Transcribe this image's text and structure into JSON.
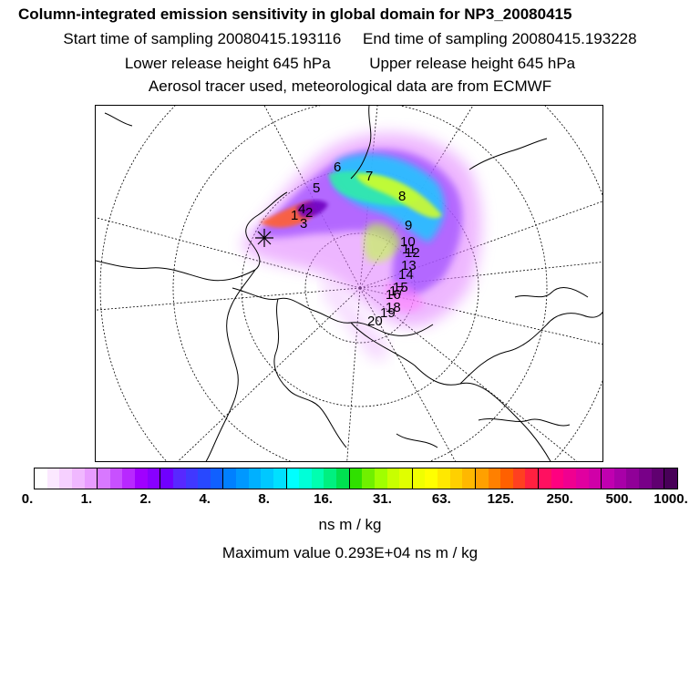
{
  "header": {
    "title": "Column-integrated emission sensitivity in global domain for NP3_20080415",
    "sampling_start": "Start time of sampling 20080415.193116",
    "sampling_end": "End time of sampling 20080415.193228",
    "lower_release": "Lower release height  645 hPa",
    "upper_release": "Upper release height  645 hPa",
    "tracer_info": "Aerosol tracer used, meteorological data are from ECMWF"
  },
  "map": {
    "projection": "polar stereographic (north pole)",
    "day_labels": [
      "1",
      "2",
      "3",
      "4",
      "5",
      "6",
      "7",
      "8",
      "9",
      "10",
      "11",
      "12",
      "13",
      "14",
      "15",
      "16",
      "17",
      "18",
      "19",
      "20"
    ],
    "release_marker": "star"
  },
  "colorbar": {
    "tick_labels": [
      "0.",
      "1.",
      "2.",
      "4.",
      "8.",
      "16.",
      "31.",
      "63.",
      "125.",
      "250.",
      "500.",
      "1000."
    ],
    "colors": [
      "#ffffff",
      "#fbe8ff",
      "#f6d0ff",
      "#f0b8ff",
      "#e89cff",
      "#d878ff",
      "#c850ff",
      "#b828ff",
      "#a000ff",
      "#8800ff",
      "#7000ff",
      "#5828ff",
      "#4038ff",
      "#2848ff",
      "#1060ff",
      "#0080ff",
      "#0098ff",
      "#00b0ff",
      "#00c8ff",
      "#00e0ff",
      "#00ffff",
      "#00ffd8",
      "#00ffb0",
      "#00f080",
      "#00e050",
      "#30e000",
      "#70f000",
      "#a0ff00",
      "#c8ff00",
      "#e0ff00",
      "#f0ff00",
      "#ffff00",
      "#ffe800",
      "#ffd000",
      "#ffb800",
      "#ffa000",
      "#ff8000",
      "#ff6000",
      "#ff4020",
      "#ff2040",
      "#ff1060",
      "#ff0080",
      "#f00090",
      "#e000a0",
      "#d000a8",
      "#c000b0",
      "#a800a8",
      "#900098",
      "#780088",
      "#600070",
      "#480058"
    ],
    "unit": "ns m / kg",
    "max_value": "Maximum value  0.293E+04 ns m / kg"
  }
}
